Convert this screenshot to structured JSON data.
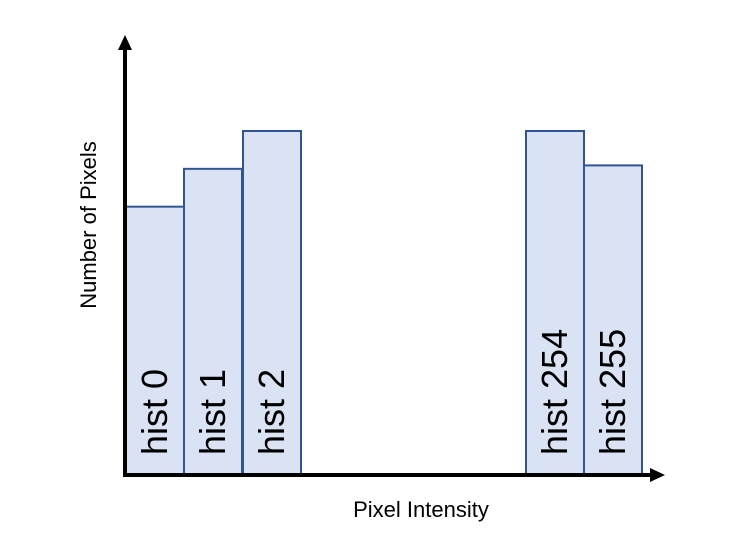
{
  "diagram": {
    "y_axis_label": "Number of Pixels",
    "x_axis_label": "Pixel Intensity",
    "bars": [
      {
        "id": "0",
        "label": "hist 0",
        "relative_height": 0.78
      },
      {
        "id": "1",
        "label": "hist 1",
        "relative_height": 0.89
      },
      {
        "id": "2",
        "label": "hist 2",
        "relative_height": 1.0
      },
      {
        "id": "254",
        "label": "hist 254",
        "relative_height": 1.0
      },
      {
        "id": "255",
        "label": "hist 255",
        "relative_height": 0.9
      }
    ],
    "colors": {
      "bar_fill": "#dae3f3",
      "bar_stroke": "#2f5597",
      "axis": "#000000"
    }
  }
}
